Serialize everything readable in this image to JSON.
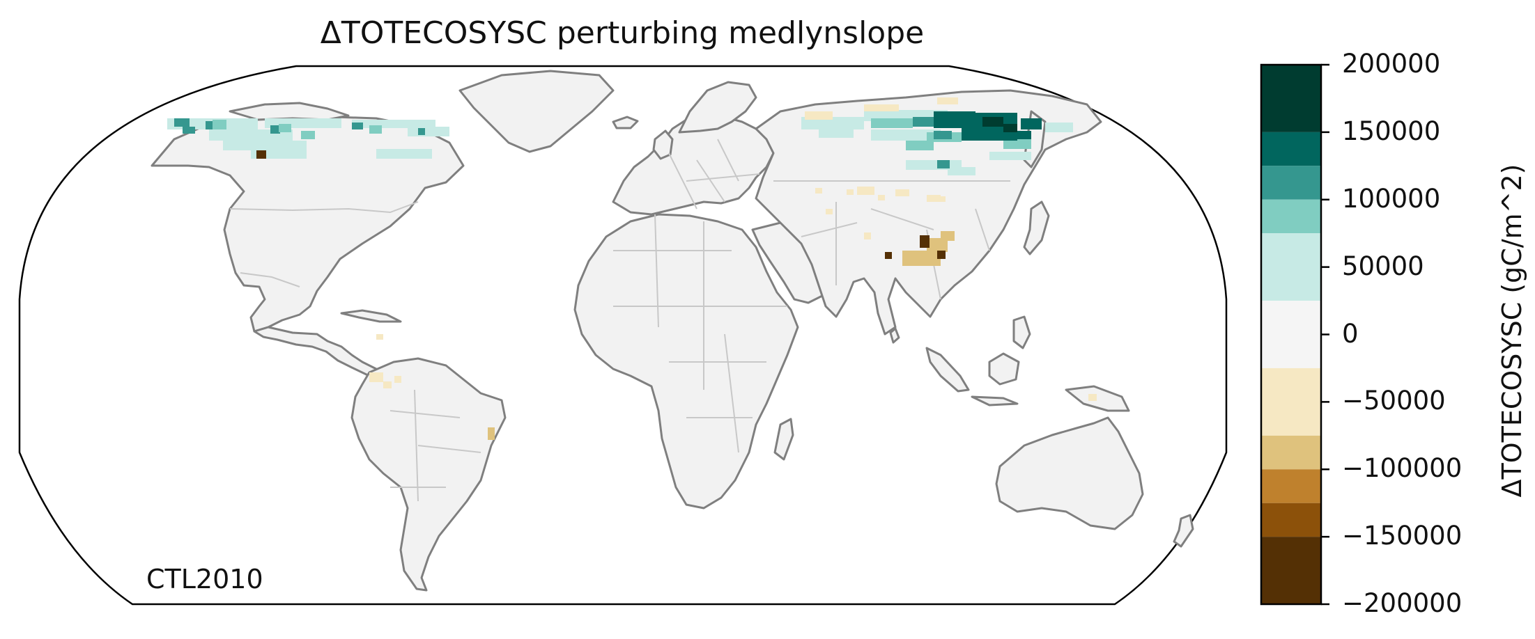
{
  "title": "ΔTOTECOSYSC perturbing medlynslope",
  "run_label": "CTL2010",
  "colorbar": {
    "label": "ΔTOTECOSYSC (gC/m^2)",
    "ticks": [
      "200000",
      "150000",
      "100000",
      "50000",
      "0",
      "−50000",
      "−100000",
      "−150000",
      "−200000"
    ],
    "bins": [
      {
        "range": [
          150000,
          200000
        ],
        "color": "#003c30"
      },
      {
        "range": [
          125000,
          150000
        ],
        "color": "#01665e"
      },
      {
        "range": [
          100000,
          125000
        ],
        "color": "#35978f"
      },
      {
        "range": [
          75000,
          100000
        ],
        "color": "#80cdc1"
      },
      {
        "range": [
          25000,
          75000
        ],
        "color": "#c7eae5"
      },
      {
        "range": [
          -25000,
          25000
        ],
        "color": "#f5f5f5"
      },
      {
        "range": [
          -75000,
          -25000
        ],
        "color": "#f6e8c3"
      },
      {
        "range": [
          -100000,
          -75000
        ],
        "color": "#dfc27d"
      },
      {
        "range": [
          -125000,
          -100000
        ],
        "color": "#bf812d"
      },
      {
        "range": [
          -150000,
          -125000
        ],
        "color": "#8c510a"
      },
      {
        "range": [
          -200000,
          -150000
        ],
        "color": "#543005"
      }
    ]
  },
  "map": {
    "projection": "Robinson",
    "coastline_color": "#7f7f7f",
    "border_color": "#c8c8c8",
    "land_fill": "#f2f2f2",
    "anomalies": [
      {
        "region": "Northern Canada / Arctic Archipelago",
        "value_range": [
          25000,
          150000
        ]
      },
      {
        "region": "Northwest Canada / Yukon cell",
        "value_range": [
          -200000,
          -150000
        ]
      },
      {
        "region": "Central & Eastern Siberia",
        "value_range": [
          50000,
          200000
        ]
      },
      {
        "region": "Tibetan Plateau",
        "value_range": [
          -200000,
          -50000
        ]
      },
      {
        "region": "Central Asia / Mongolia",
        "value_range": [
          -75000,
          -25000
        ]
      },
      {
        "region": "Northern South America / Colombia",
        "value_range": [
          -75000,
          -25000
        ]
      },
      {
        "region": "Eastern Brazil",
        "value_range": [
          -100000,
          -50000
        ]
      }
    ]
  }
}
